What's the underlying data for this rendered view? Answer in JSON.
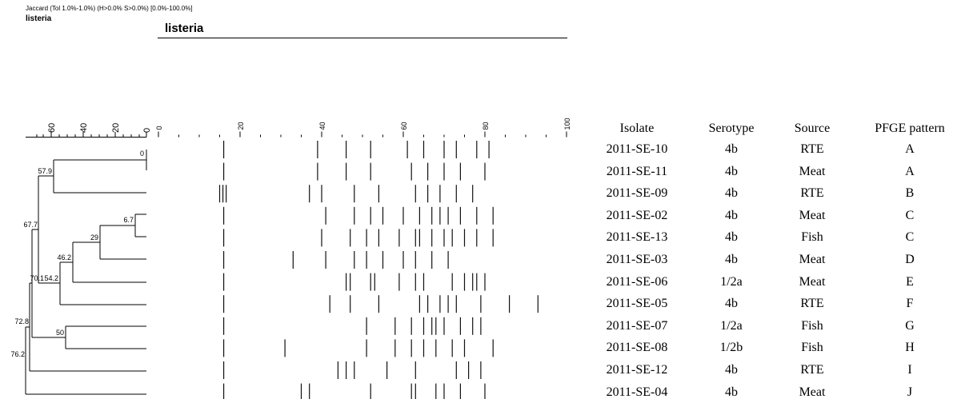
{
  "header": {
    "similarity_settings": "Jaccard (Tol 1.0%-1.0%) (H>0.0% S>0.0%) [0.0%-100.0%]",
    "experiment_name": "listeria",
    "gel_title": "listeria"
  },
  "dendrogram": {
    "scale_ticks": [
      "60",
      "40",
      "20",
      "0"
    ],
    "node_labels": [
      "0",
      "57.9",
      "67.7",
      "6.7",
      "29",
      "46.2",
      "70.1",
      "54.2",
      "72.8",
      "50",
      "76.2"
    ]
  },
  "gel": {
    "scale_ticks": [
      "0",
      "20",
      "40",
      "60",
      "80",
      "100"
    ],
    "lanes": [
      [
        16,
        39,
        46,
        52,
        61,
        65,
        70,
        73,
        78,
        81
      ],
      [
        16,
        39,
        46,
        52,
        62,
        66,
        70,
        74,
        80
      ],
      [
        15,
        15.8,
        16.6,
        37,
        40,
        48,
        54,
        63,
        66,
        69,
        73,
        77
      ],
      [
        16,
        41,
        48,
        52,
        55,
        60,
        64,
        67,
        69,
        71,
        74,
        78,
        82
      ],
      [
        16,
        40,
        47,
        51,
        54,
        59,
        63,
        64,
        67,
        70,
        72,
        75,
        78,
        82
      ],
      [
        16,
        33,
        41,
        48,
        51,
        55,
        60,
        63,
        67,
        71
      ],
      [
        16,
        46,
        47,
        52,
        53,
        59,
        63,
        65,
        72,
        75,
        77,
        78,
        80
      ],
      [
        16,
        42,
        47,
        54,
        64,
        66,
        69,
        71,
        73,
        79,
        86,
        93
      ],
      [
        16,
        51,
        58,
        62,
        65,
        67,
        68,
        70,
        74,
        77,
        79
      ],
      [
        16,
        31,
        51,
        58,
        62,
        65,
        68,
        72,
        75,
        82
      ],
      [
        16,
        44,
        46,
        48,
        56,
        63,
        73,
        76,
        79
      ],
      [
        16,
        35,
        37,
        52,
        62,
        63,
        68,
        70,
        74,
        80
      ]
    ]
  },
  "table": {
    "headers": [
      "Isolate",
      "Serotype",
      "Source",
      "PFGE  pattern"
    ],
    "rows": [
      [
        "2011-SE-10",
        "4b",
        "RTE",
        "A"
      ],
      [
        "2011-SE-11",
        "4b",
        "Meat",
        "A"
      ],
      [
        "2011-SE-09",
        "4b",
        "RTE",
        "B"
      ],
      [
        "2011-SE-02",
        "4b",
        "Meat",
        "C"
      ],
      [
        "2011-SE-13",
        "4b",
        "Fish",
        "C"
      ],
      [
        "2011-SE-03",
        "4b",
        "Meat",
        "D"
      ],
      [
        "2011-SE-06",
        "1/2a",
        "Meat",
        "E"
      ],
      [
        "2011-SE-05",
        "4b",
        "RTE",
        "F"
      ],
      [
        "2011-SE-07",
        "1/2a",
        "Fish",
        "G"
      ],
      [
        "2011-SE-08",
        "1/2b",
        "Fish",
        "H"
      ],
      [
        "2011-SE-12",
        "4b",
        "RTE",
        "I"
      ],
      [
        "2011-SE-04",
        "4b",
        "Meat",
        "J"
      ]
    ]
  }
}
